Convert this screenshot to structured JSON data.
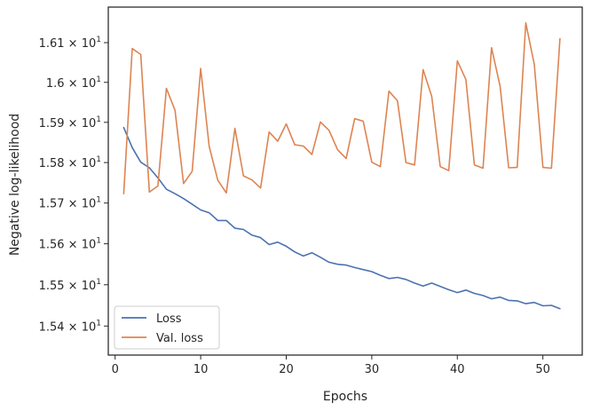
{
  "chart_data": {
    "type": "line",
    "xlabel": "Epochs",
    "ylabel": "Negative log-likelihood",
    "xlim": [
      -0.8,
      54.6
    ],
    "ylim": [
      15.33,
      16.19
    ],
    "yscale": "log",
    "xticks": [
      0,
      10,
      20,
      30,
      40,
      50
    ],
    "xtick_labels": [
      "0",
      "10",
      "20",
      "30",
      "40",
      "50"
    ],
    "yticks": [
      15.4,
      15.5,
      15.6,
      15.7,
      15.8,
      15.9,
      16.0,
      16.1
    ],
    "ytick_labels": [
      {
        "mantissa": "1.54",
        "times": "×",
        "base": "10",
        "exp": "1"
      },
      {
        "mantissa": "1.55",
        "times": "×",
        "base": "10",
        "exp": "1"
      },
      {
        "mantissa": "1.56",
        "times": "×",
        "base": "10",
        "exp": "1"
      },
      {
        "mantissa": "1.57",
        "times": "×",
        "base": "10",
        "exp": "1"
      },
      {
        "mantissa": "1.58",
        "times": "×",
        "base": "10",
        "exp": "1"
      },
      {
        "mantissa": "1.59",
        "times": "×",
        "base": "10",
        "exp": "1"
      },
      {
        "mantissa": "1.6",
        "times": "×",
        "base": "10",
        "exp": "1"
      },
      {
        "mantissa": "1.61",
        "times": "×",
        "base": "10",
        "exp": "1"
      }
    ],
    "grid": false,
    "legend_position": "bottom-left",
    "x": [
      1,
      2,
      3,
      4,
      5,
      6,
      7,
      8,
      9,
      10,
      11,
      12,
      13,
      14,
      15,
      16,
      17,
      18,
      19,
      20,
      21,
      22,
      23,
      24,
      25,
      26,
      27,
      28,
      29,
      30,
      31,
      32,
      33,
      34,
      35,
      36,
      37,
      38,
      39,
      40,
      41,
      42,
      43,
      44,
      45,
      46,
      47,
      48,
      49,
      50,
      51,
      52
    ],
    "series": [
      {
        "name": "Loss",
        "color": "#4c72b0",
        "values": [
          15.887,
          15.837,
          15.801,
          15.787,
          15.762,
          15.734,
          15.723,
          15.711,
          15.697,
          15.683,
          15.676,
          15.657,
          15.657,
          15.638,
          15.635,
          15.621,
          15.615,
          15.598,
          15.604,
          15.594,
          15.58,
          15.57,
          15.578,
          15.567,
          15.555,
          15.55,
          15.548,
          15.542,
          15.537,
          15.532,
          15.523,
          15.515,
          15.518,
          15.513,
          15.504,
          15.497,
          15.504,
          15.496,
          15.488,
          15.481,
          15.487,
          15.479,
          15.474,
          15.466,
          15.47,
          15.462,
          15.461,
          15.454,
          15.457,
          15.449,
          15.45,
          15.442
        ]
      },
      {
        "name": "Val. loss",
        "color": "#dd8452",
        "values": [
          15.723,
          16.085,
          16.07,
          15.727,
          15.742,
          15.985,
          15.93,
          15.748,
          15.778,
          16.035,
          15.84,
          15.756,
          15.725,
          15.885,
          15.767,
          15.757,
          15.737,
          15.876,
          15.853,
          15.896,
          15.844,
          15.841,
          15.82,
          15.901,
          15.88,
          15.832,
          15.81,
          15.909,
          15.903,
          15.801,
          15.79,
          15.978,
          15.954,
          15.8,
          15.794,
          16.032,
          15.965,
          15.79,
          15.78,
          16.054,
          16.007,
          15.794,
          15.786,
          16.087,
          15.99,
          15.787,
          15.788,
          16.15,
          16.045,
          15.788,
          15.786,
          16.11
        ]
      }
    ]
  }
}
